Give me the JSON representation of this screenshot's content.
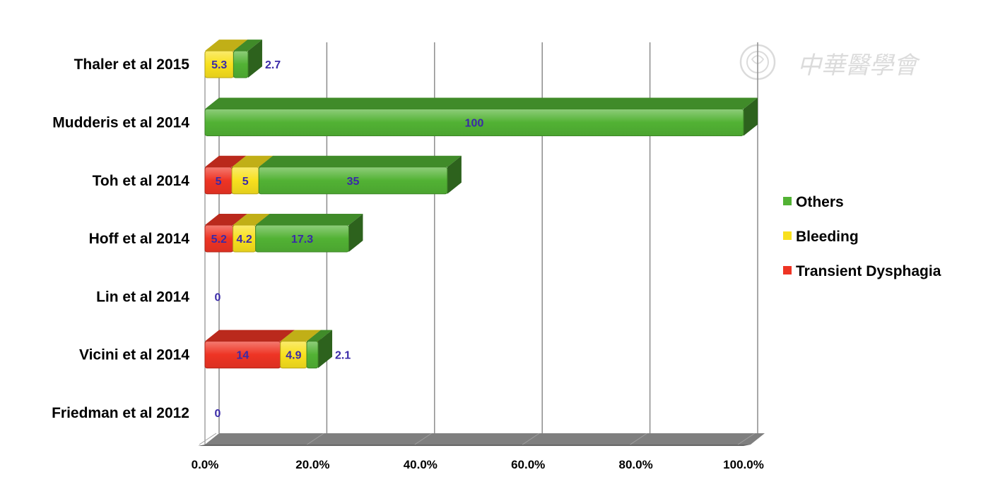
{
  "chart_data": {
    "type": "bar",
    "orientation": "horizontal",
    "stacked": true,
    "three_d": true,
    "categories": [
      "Thaler et al 2015",
      "Mudderis et al 2014",
      "Toh et al 2014",
      "Hoff et al 2014",
      "Lin et al 2014",
      "Vicini et al 2014",
      "Friedman et al 2012"
    ],
    "series": [
      {
        "name": "Transient Dysphagia",
        "color": "#ee3424",
        "values": [
          0,
          0,
          5,
          5.2,
          0,
          14,
          0
        ],
        "labels": [
          "",
          "",
          "5",
          "5.2",
          "",
          "14",
          ""
        ]
      },
      {
        "name": "Bleeding",
        "color": "#f8e01e",
        "values": [
          5.3,
          0,
          5,
          4.2,
          0,
          4.9,
          0
        ],
        "labels": [
          "5.3",
          "",
          "5",
          "4.2",
          "",
          "4.9",
          ""
        ]
      },
      {
        "name": "Others",
        "color": "#52b234",
        "values": [
          2.7,
          100,
          35,
          17.3,
          0,
          2.1,
          0
        ],
        "labels": [
          "2.7",
          "100",
          "35",
          "17.3",
          "",
          "2.1",
          ""
        ]
      }
    ],
    "zero_labels": [
      "",
      "",
      "",
      "",
      "0",
      "",
      "0"
    ],
    "x_ticks": [
      "0.0%",
      "20.0%",
      "40.0%",
      "60.0%",
      "80.0%",
      "100.0%"
    ],
    "xlim": [
      0,
      100
    ],
    "grid": true,
    "legend": {
      "position": "right",
      "order": [
        "Others",
        "Bleeding",
        "Transient Dysphagia"
      ]
    },
    "title": "",
    "xlabel": "",
    "ylabel": ""
  },
  "watermark": {
    "text": "中華醫學會"
  }
}
